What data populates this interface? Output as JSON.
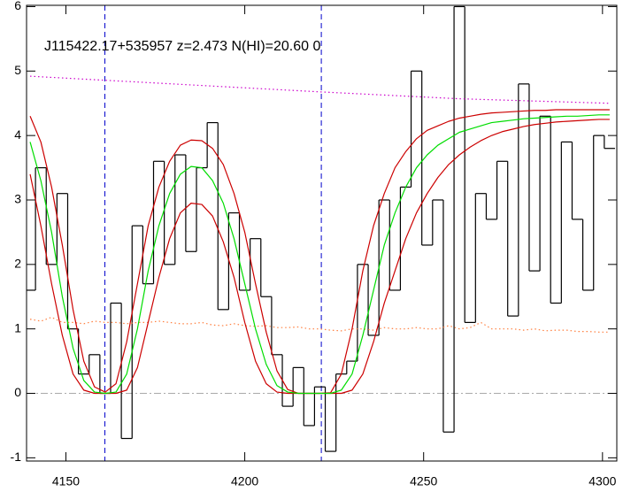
{
  "chart_data": {
    "type": "spectrum",
    "title": "J115422.17+535957 z=2.473 N(HI)=20.60 0",
    "xlim": [
      4139,
      4304
    ],
    "ylim": [
      -1.05,
      6.02
    ],
    "xticks": [
      4150,
      4200,
      4250,
      4300
    ],
    "yticks": [
      -1,
      0,
      1,
      2,
      3,
      4,
      5,
      6
    ],
    "hlines": [
      {
        "value": 0,
        "color": "#aaaaaa",
        "linestyle": "dashdot"
      }
    ],
    "vlines": [
      {
        "value": 4160.9,
        "color": "#0000cc",
        "linestyle": "dashed"
      },
      {
        "value": 4221.4,
        "color": "#0000cc",
        "linestyle": "dashed"
      }
    ],
    "x": [
      4140,
      4143,
      4146,
      4149,
      4152,
      4155,
      4158,
      4161,
      4164,
      4167,
      4170,
      4173,
      4176,
      4179,
      4182,
      4185,
      4188,
      4191,
      4194,
      4197,
      4200,
      4203,
      4206,
      4209,
      4212,
      4215,
      4218,
      4221,
      4224,
      4227,
      4230,
      4233,
      4236,
      4239,
      4242,
      4245,
      4248,
      4251,
      4254,
      4257,
      4260,
      4263,
      4266,
      4269,
      4272,
      4275,
      4278,
      4281,
      4284,
      4287,
      4290,
      4293,
      4296,
      4299,
      4302
    ],
    "series": [
      {
        "color": "#000000",
        "linestyle": "solid",
        "drawstyle": "steps",
        "values": [
          1.6,
          3.5,
          2.0,
          3.1,
          1.0,
          0.3,
          0.6,
          0.0,
          1.4,
          -0.7,
          2.6,
          1.7,
          3.6,
          2.0,
          3.7,
          2.2,
          3.5,
          4.2,
          1.3,
          2.8,
          1.6,
          2.4,
          1.5,
          0.6,
          -0.2,
          0.4,
          -0.5,
          0.1,
          -0.9,
          0.3,
          0.5,
          2.0,
          0.9,
          3.0,
          1.6,
          3.2,
          5.0,
          2.3,
          3.0,
          -0.6,
          6.0,
          1.1,
          3.1,
          2.7,
          3.6,
          1.2,
          4.8,
          1.9,
          4.3,
          1.4,
          3.9,
          2.7,
          1.6,
          4.0,
          3.8
        ]
      },
      {
        "color": "#ff7f3f",
        "linestyle": "dotted",
        "values": [
          1.15,
          1.12,
          1.18,
          1.1,
          1.1,
          1.08,
          1.12,
          1.1,
          1.1,
          1.08,
          1.1,
          1.1,
          1.12,
          1.1,
          1.08,
          1.08,
          1.1,
          1.06,
          1.05,
          1.08,
          1.05,
          1.04,
          1.05,
          1.02,
          1.02,
          1.03,
          1.0,
          1.0,
          0.98,
          0.97,
          1.0,
          1.0,
          0.98,
          1.02,
          1.0,
          1.0,
          1.02,
          1.0,
          1.0,
          1.05,
          1.0,
          1.02,
          1.1,
          1.0,
          1.0,
          1.0,
          0.98,
          1.0,
          0.97,
          0.98,
          0.98,
          0.96,
          0.96,
          0.95,
          0.95
        ]
      },
      {
        "color": "#cc00cc",
        "linestyle": "dotted",
        "x": [
          4140,
          4180,
          4220,
          4260,
          4302
        ],
        "values": [
          4.92,
          4.8,
          4.68,
          4.57,
          4.5
        ]
      },
      {
        "color": "#cc0000",
        "linestyle": "solid",
        "values": [
          4.3,
          3.9,
          3.2,
          2.3,
          1.3,
          0.5,
          0.1,
          0.02,
          0.15,
          0.8,
          1.7,
          2.6,
          3.2,
          3.6,
          3.85,
          3.93,
          3.92,
          3.8,
          3.55,
          3.1,
          2.5,
          1.7,
          0.95,
          0.35,
          0.06,
          0,
          0,
          0,
          0.01,
          0.3,
          1.0,
          1.9,
          2.6,
          3.1,
          3.5,
          3.75,
          3.95,
          4.08,
          4.15,
          4.22,
          4.27,
          4.3,
          4.33,
          4.35,
          4.36,
          4.37,
          4.38,
          4.39,
          4.39,
          4.4,
          4.4,
          4.4,
          4.4,
          4.4,
          4.4
        ]
      },
      {
        "color": "#cc0000",
        "linestyle": "solid",
        "values": [
          3.4,
          2.6,
          1.7,
          0.9,
          0.3,
          0.05,
          0,
          0,
          0,
          0.05,
          0.4,
          1.1,
          1.8,
          2.4,
          2.8,
          2.95,
          2.93,
          2.75,
          2.35,
          1.8,
          1.1,
          0.5,
          0.15,
          0.02,
          0,
          0,
          0,
          0,
          0,
          0,
          0.05,
          0.3,
          0.8,
          1.4,
          1.9,
          2.4,
          2.8,
          3.1,
          3.35,
          3.55,
          3.7,
          3.82,
          3.92,
          4.0,
          4.06,
          4.1,
          4.14,
          4.17,
          4.19,
          4.21,
          4.22,
          4.23,
          4.24,
          4.25,
          4.25
        ]
      },
      {
        "color": "#00dd00",
        "linestyle": "solid",
        "values": [
          3.9,
          3.3,
          2.5,
          1.5,
          0.7,
          0.2,
          0.02,
          0,
          0.02,
          0.3,
          1.0,
          1.9,
          2.6,
          3.1,
          3.4,
          3.52,
          3.5,
          3.3,
          2.95,
          2.4,
          1.7,
          1.0,
          0.45,
          0.12,
          0.02,
          0,
          0,
          0,
          0,
          0.05,
          0.3,
          0.9,
          1.6,
          2.3,
          2.8,
          3.2,
          3.5,
          3.7,
          3.85,
          3.95,
          4.05,
          4.1,
          4.15,
          4.2,
          4.22,
          4.24,
          4.26,
          4.27,
          4.28,
          4.29,
          4.3,
          4.3,
          4.31,
          4.32,
          4.32
        ]
      }
    ]
  }
}
